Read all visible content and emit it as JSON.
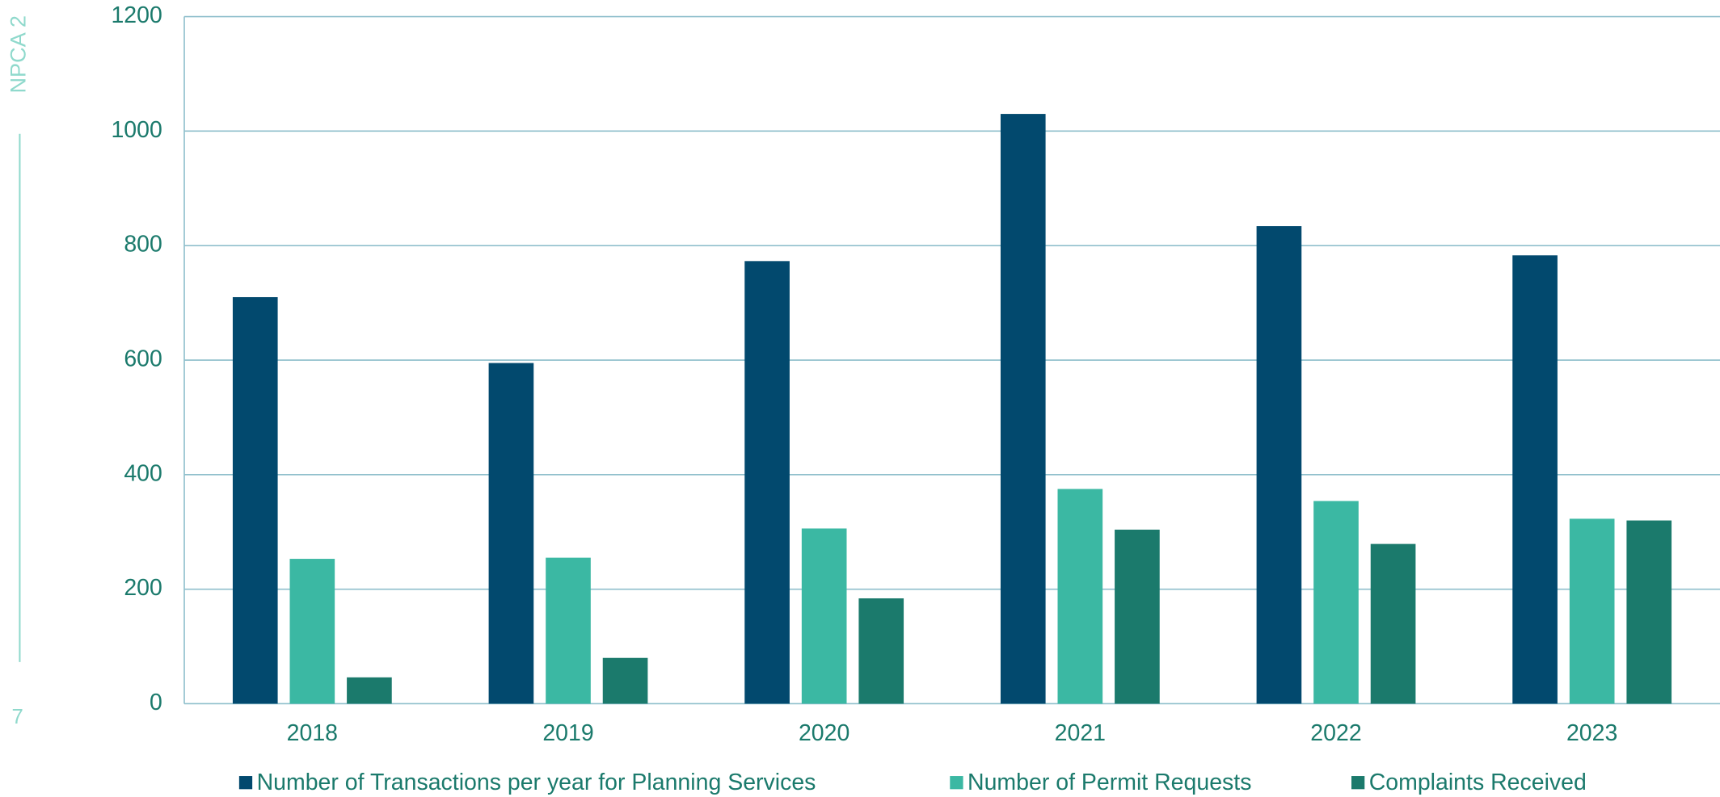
{
  "side_label": "NPCA 2",
  "page_number": "7",
  "chart_data": {
    "type": "bar",
    "categories": [
      "2018",
      "2019",
      "2020",
      "2021",
      "2022",
      "2023"
    ],
    "series": [
      {
        "name": "Number of Transactions per year for Planning Services",
        "color": "#02496e",
        "values": [
          710,
          595,
          773,
          1030,
          834,
          783
        ]
      },
      {
        "name": "Number of Permit Requests",
        "color": "#3bb8a3",
        "values": [
          253,
          255,
          306,
          375,
          354,
          323
        ]
      },
      {
        "name": "Complaints Received",
        "color": "#1b7a6c",
        "values": [
          46,
          80,
          184,
          304,
          279,
          320
        ]
      }
    ],
    "ylim": [
      0,
      1200
    ],
    "yticks": [
      0,
      200,
      400,
      600,
      800,
      1000,
      1200
    ],
    "grid": true,
    "legend": "bottom"
  }
}
